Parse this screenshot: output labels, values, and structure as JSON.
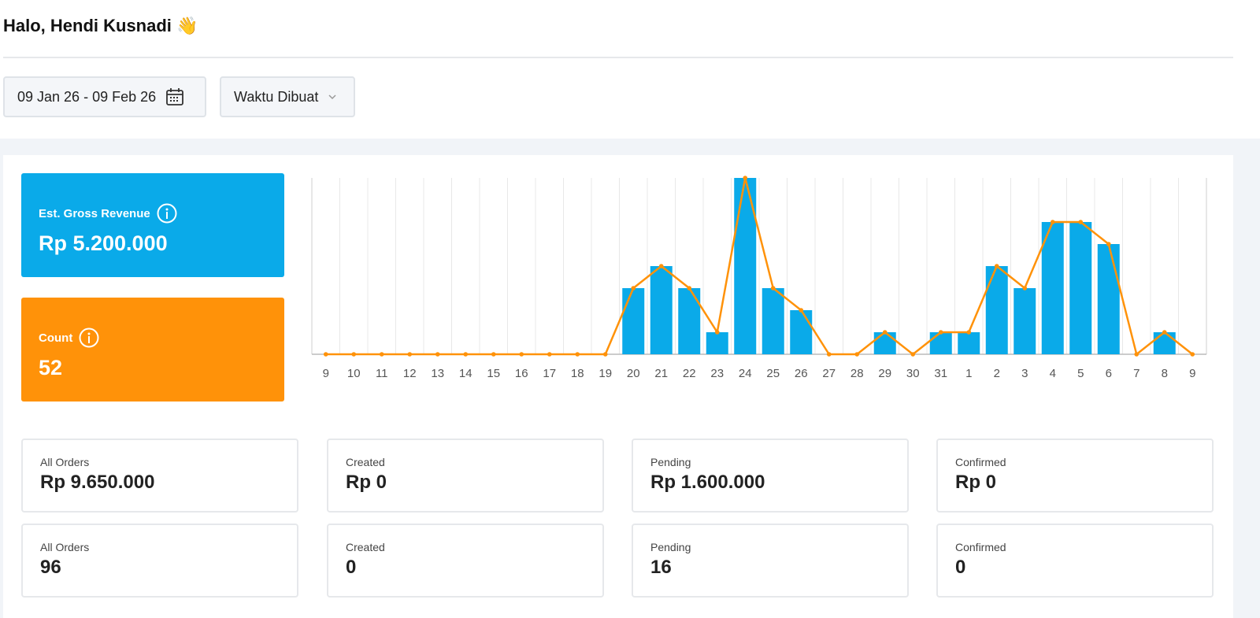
{
  "header": {
    "greeting": "Halo, Hendi Kusnadi 👋"
  },
  "filters": {
    "date_range": "09 Jan 26 - 09 Feb 26",
    "sort": "Waktu Dibuat"
  },
  "summary": [
    {
      "label": "Est. Gross Revenue",
      "value": "Rp 5.200.000",
      "color": "#0aaae9"
    },
    {
      "label": "Count",
      "value": "52",
      "color": "#ff9209"
    }
  ],
  "chart_data": {
    "type": "bar",
    "categories": [
      "9",
      "10",
      "11",
      "12",
      "13",
      "14",
      "15",
      "16",
      "17",
      "18",
      "19",
      "20",
      "21",
      "22",
      "23",
      "24",
      "25",
      "26",
      "27",
      "28",
      "29",
      "30",
      "31",
      "1",
      "2",
      "3",
      "4",
      "5",
      "6",
      "7",
      "8",
      "9"
    ],
    "series": [
      {
        "color": "#0aaae9",
        "values": [
          0,
          0,
          0,
          0,
          0,
          0,
          0,
          0,
          0,
          0,
          0,
          300000,
          400000,
          300000,
          100000,
          800000,
          300000,
          200000,
          0,
          0,
          100000,
          0,
          100000,
          100000,
          400000,
          300000,
          600000,
          600000,
          500000,
          0,
          100000,
          0
        ]
      },
      {
        "color": "#ff9209",
        "type": "line",
        "axis": "y2",
        "values": [
          0,
          0,
          0,
          0,
          0,
          0,
          0,
          0,
          0,
          0,
          0,
          3,
          4,
          3,
          1,
          8,
          3,
          2,
          0,
          0,
          1,
          0,
          1,
          1,
          4,
          3,
          6,
          6,
          5,
          0,
          1,
          0
        ]
      }
    ],
    "ylim": [
      0,
      800000
    ],
    "y2lim": [
      0,
      8
    ],
    "grid": true
  },
  "stats": {
    "amounts": [
      {
        "label": "All Orders",
        "value": "Rp 9.650.000"
      },
      {
        "label": "Created",
        "value": "Rp 0"
      },
      {
        "label": "Pending",
        "value": "Rp 1.600.000"
      },
      {
        "label": "Confirmed",
        "value": "Rp 0"
      }
    ],
    "counts": [
      {
        "label": "All Orders",
        "value": "96"
      },
      {
        "label": "Created",
        "value": "0"
      },
      {
        "label": "Pending",
        "value": "16"
      },
      {
        "label": "Confirmed",
        "value": "0"
      }
    ]
  }
}
